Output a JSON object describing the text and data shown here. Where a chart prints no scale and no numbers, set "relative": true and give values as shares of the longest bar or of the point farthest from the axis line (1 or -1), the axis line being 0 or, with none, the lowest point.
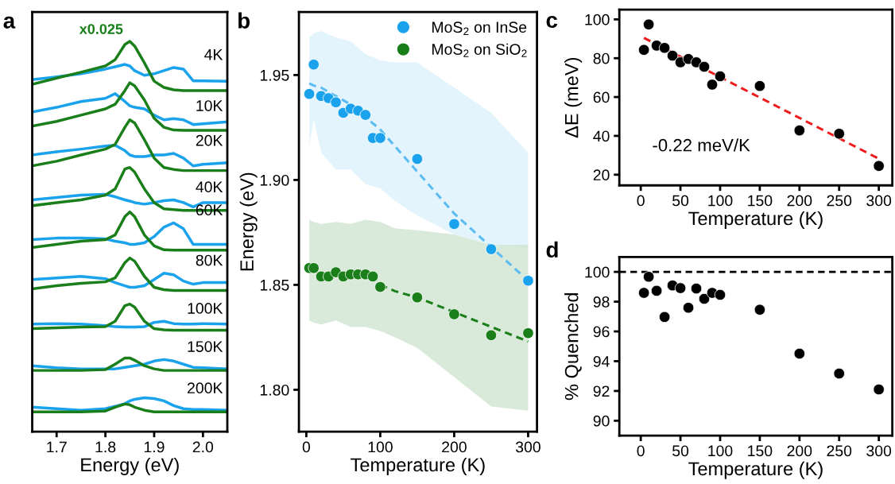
{
  "chart_data": [
    {
      "type": "line",
      "title": "a",
      "xlabel": "Energy (eV)",
      "relative": true,
      "tick_labels": "x",
      "xlim": [
        1.65,
        2.05
      ],
      "xticks": [
        1.7,
        1.8,
        1.9,
        {
          "value": 2.0,
          "label": "2.0"
        }
      ],
      "x": [
        1.65,
        1.7,
        1.75,
        1.8,
        1.82,
        1.84,
        1.85,
        1.86,
        1.88,
        1.9,
        1.92,
        1.94,
        1.96,
        1.98,
        2.0,
        2.05
      ],
      "series": [
        {
          "color": "#1aa3ec",
          "values": [
            0.902,
            0.909,
            0.917,
            0.929,
            0.935,
            0.941,
            0.937,
            0.925,
            0.913,
            0.917,
            0.925,
            0.933,
            0.929,
            0.899,
            0.899,
            0.898
          ]
        },
        {
          "name": "x0.025",
          "color": "#1a7f1a",
          "values": [
            0.89,
            0.906,
            0.921,
            0.937,
            0.953,
            0.992,
            1.0,
            0.988,
            0.945,
            0.898,
            0.882,
            0.876,
            0.874,
            0.874,
            0.874,
            0.874
          ]
        },
        {
          "color": "#1aa3ec",
          "values": [
            0.819,
            0.831,
            0.846,
            0.854,
            0.866,
            0.846,
            0.835,
            0.831,
            0.827,
            0.811,
            0.799,
            0.802,
            0.799,
            0.787,
            0.789,
            0.794
          ]
        },
        {
          "color": "#1a7f1a",
          "values": [
            0.783,
            0.795,
            0.811,
            0.827,
            0.839,
            0.874,
            0.894,
            0.886,
            0.85,
            0.803,
            0.78,
            0.773,
            0.772,
            0.772,
            0.772,
            0.772
          ]
        },
        {
          "color": "#1aa3ec",
          "values": [
            0.709,
            0.717,
            0.724,
            0.732,
            0.734,
            0.72,
            0.709,
            0.705,
            0.705,
            0.709,
            0.709,
            0.713,
            0.701,
            0.681,
            0.685,
            0.689
          ]
        },
        {
          "color": "#1a7f1a",
          "values": [
            0.681,
            0.693,
            0.709,
            0.724,
            0.736,
            0.78,
            0.799,
            0.791,
            0.748,
            0.701,
            0.677,
            0.672,
            0.669,
            0.669,
            0.669,
            0.669
          ]
        },
        {
          "color": "#1aa3ec",
          "values": [
            0.594,
            0.6,
            0.606,
            0.608,
            0.602,
            0.594,
            0.591,
            0.587,
            0.583,
            0.587,
            0.592,
            0.594,
            0.587,
            0.576,
            0.587,
            0.587
          ]
        },
        {
          "color": "#1a7f1a",
          "values": [
            0.579,
            0.587,
            0.594,
            0.606,
            0.622,
            0.673,
            0.677,
            0.665,
            0.622,
            0.587,
            0.571,
            0.569,
            0.567,
            0.567,
            0.567,
            0.567
          ]
        },
        {
          "color": "#1aa3ec",
          "values": [
            0.492,
            0.496,
            0.496,
            0.494,
            0.488,
            0.484,
            0.48,
            0.48,
            0.484,
            0.5,
            0.524,
            0.535,
            0.52,
            0.48,
            0.48,
            0.48
          ]
        },
        {
          "color": "#1a7f1a",
          "values": [
            0.472,
            0.48,
            0.488,
            0.492,
            0.504,
            0.551,
            0.563,
            0.551,
            0.504,
            0.476,
            0.466,
            0.465,
            0.465,
            0.465,
            0.465,
            0.465
          ]
        },
        {
          "color": "#1aa3ec",
          "values": [
            0.39,
            0.394,
            0.398,
            0.392,
            0.382,
            0.374,
            0.37,
            0.37,
            0.374,
            0.39,
            0.406,
            0.402,
            0.386,
            0.378,
            0.382,
            0.382
          ]
        },
        {
          "color": "#1a7f1a",
          "values": [
            0.366,
            0.374,
            0.38,
            0.384,
            0.394,
            0.433,
            0.445,
            0.437,
            0.398,
            0.37,
            0.364,
            0.362,
            0.362,
            0.362,
            0.362,
            0.362
          ]
        },
        {
          "color": "#1aa3ec",
          "values": [
            0.276,
            0.277,
            0.276,
            0.272,
            0.269,
            0.268,
            0.268,
            0.268,
            0.269,
            0.28,
            0.283,
            0.277,
            0.276,
            0.276,
            0.277,
            0.276
          ]
        },
        {
          "color": "#1a7f1a",
          "values": [
            0.264,
            0.266,
            0.268,
            0.269,
            0.283,
            0.323,
            0.327,
            0.319,
            0.283,
            0.264,
            0.261,
            0.26,
            0.26,
            0.26,
            0.26,
            0.26
          ]
        },
        {
          "color": "#1aa3ec",
          "values": [
            0.169,
            0.164,
            0.161,
            0.161,
            0.161,
            0.165,
            0.167,
            0.169,
            0.173,
            0.181,
            0.185,
            0.181,
            0.173,
            0.165,
            0.164,
            0.161
          ]
        },
        {
          "color": "#1a7f1a",
          "values": [
            0.157,
            0.157,
            0.157,
            0.159,
            0.173,
            0.189,
            0.189,
            0.183,
            0.169,
            0.161,
            0.157,
            0.157,
            0.157,
            0.157,
            0.157,
            0.157
          ]
        },
        {
          "color": "#1aa3ec",
          "values": [
            0.063,
            0.059,
            0.055,
            0.059,
            0.065,
            0.072,
            0.079,
            0.083,
            0.087,
            0.085,
            0.079,
            0.067,
            0.059,
            0.057,
            0.057,
            0.055
          ]
        },
        {
          "color": "#1a7f1a",
          "values": [
            0.051,
            0.051,
            0.051,
            0.053,
            0.063,
            0.071,
            0.069,
            0.063,
            0.055,
            0.051,
            0.051,
            0.051,
            0.051,
            0.051,
            0.051,
            0.051
          ]
        }
      ],
      "annotations": [
        "4K",
        "10K",
        "20K",
        "40K",
        "60K",
        "80K",
        "100K",
        "150K",
        "200K"
      ]
    },
    {
      "type": "scatter",
      "title": "b",
      "xlabel": "Temperature (K)",
      "ylabel": "Energy (eV)",
      "xlim": [
        -10,
        312
      ],
      "ylim": [
        1.78,
        1.98
      ],
      "xticks": [
        0,
        100,
        200,
        300
      ],
      "yticks": [
        {
          "value": 1.8,
          "label": "1.80"
        },
        {
          "value": 1.85,
          "label": "1.85"
        },
        {
          "value": 1.9,
          "label": "1.90"
        },
        {
          "value": 1.95,
          "label": "1.95"
        }
      ],
      "legend": "top right",
      "series": [
        {
          "type": "line",
          "line_style": "dashed",
          "color": "#5bbcf2",
          "x": [
            4,
            10,
            20,
            40,
            60,
            80,
            100,
            120,
            150,
            200,
            250,
            300
          ],
          "values": [
            1.946,
            1.945,
            1.944,
            1.94,
            1.936,
            1.93,
            1.924,
            1.916,
            1.904,
            1.884,
            1.868,
            1.852
          ],
          "lower": [
            1.916,
            1.929,
            1.913,
            1.905,
            1.905,
            1.898,
            1.896,
            1.89,
            1.883,
            1.874,
            1.869,
            1.868
          ],
          "upper": [
            1.968,
            1.97,
            1.971,
            1.968,
            1.966,
            1.96,
            1.957,
            1.956,
            1.956,
            1.944,
            1.932,
            1.913
          ]
        },
        {
          "type": "line",
          "line_style": "dashed",
          "color": "#1a7f1a",
          "x": [
            4,
            10,
            20,
            40,
            60,
            80,
            100,
            120,
            150,
            200,
            250,
            300
          ],
          "values": [
            null,
            null,
            null,
            null,
            null,
            null,
            1.85,
            1.847,
            1.844,
            1.837,
            1.83,
            1.823
          ],
          "lower": [
            1.833,
            1.832,
            1.831,
            1.833,
            1.83,
            1.83,
            1.828,
            1.825,
            1.82,
            1.806,
            1.792,
            1.79
          ],
          "upper": [
            1.881,
            1.88,
            1.879,
            1.88,
            1.879,
            1.881,
            1.88,
            1.877,
            1.876,
            1.874,
            1.869,
            1.869
          ]
        },
        {
          "name": "MoS$_{2}$ on InSe",
          "marker": "circle",
          "color": "#1aa3ec",
          "x": [
            4,
            10,
            20,
            30,
            40,
            50,
            60,
            70,
            80,
            90,
            100,
            150,
            200,
            250,
            300
          ],
          "values": [
            1.941,
            1.955,
            1.94,
            1.939,
            1.937,
            1.932,
            1.934,
            1.933,
            1.931,
            1.92,
            1.92,
            1.91,
            1.879,
            1.867,
            1.852
          ]
        },
        {
          "name": "MoS$_{2}$ on SiO$_{2}$",
          "marker": "circle",
          "color": "#1a7f1a",
          "x": [
            4,
            10,
            20,
            30,
            40,
            50,
            60,
            70,
            80,
            90,
            100,
            150,
            200,
            250,
            300
          ],
          "values": [
            1.858,
            1.858,
            1.854,
            1.854,
            1.856,
            1.854,
            1.855,
            1.855,
            1.855,
            1.854,
            1.849,
            1.844,
            1.836,
            1.826,
            1.827
          ]
        }
      ]
    },
    {
      "type": "scatter",
      "title": "c",
      "xlabel": "Temperature (K)",
      "ylabel": "ΔE (meV)",
      "xlim": [
        -27,
        317
      ],
      "ylim": [
        14.5,
        105
      ],
      "xticks": [
        0,
        50,
        100,
        150,
        200,
        250,
        300
      ],
      "yticks": [
        20,
        40,
        60,
        80,
        100
      ],
      "series": [
        {
          "marker": "circle",
          "color": "#000000",
          "x": [
            4,
            10,
            20,
            30,
            40,
            50,
            60,
            70,
            80,
            90,
            100,
            150,
            200,
            250,
            300
          ],
          "values": [
            84.3,
            97.4,
            86.5,
            85.3,
            81.3,
            77.9,
            79.6,
            77.9,
            75.6,
            66.4,
            70.7,
            65.7,
            42.8,
            41.1,
            24.5
          ]
        },
        {
          "type": "line",
          "line_style": "dashed",
          "color": "#ee1c1c",
          "x": [
            4,
            300
          ],
          "values": [
            90.5,
            28.2
          ]
        }
      ],
      "annotations": [
        "-0.22 meV/K"
      ]
    },
    {
      "type": "scatter",
      "title": "d",
      "xlabel": "Temperature (K)",
      "ylabel": "% Quenched",
      "xlim": [
        -27,
        317
      ],
      "ylim": [
        89,
        101
      ],
      "xticks": [
        0,
        50,
        100,
        150,
        200,
        250,
        300
      ],
      "yticks": [
        90,
        92,
        94,
        96,
        98,
        100
      ],
      "series": [
        {
          "marker": "circle",
          "color": "#000000",
          "x": [
            4,
            10,
            20,
            30,
            40,
            50,
            60,
            70,
            80,
            90,
            100,
            150,
            200,
            250,
            300
          ],
          "values": [
            98.59,
            99.67,
            98.73,
            96.97,
            99.09,
            98.91,
            97.59,
            98.88,
            98.19,
            98.59,
            98.46,
            97.46,
            94.51,
            93.17,
            92.1
          ]
        }
      ],
      "ref_lines": [
        {
          "axis": "y",
          "value": 100,
          "color": "#000000",
          "line_style": "dashed"
        }
      ]
    }
  ]
}
